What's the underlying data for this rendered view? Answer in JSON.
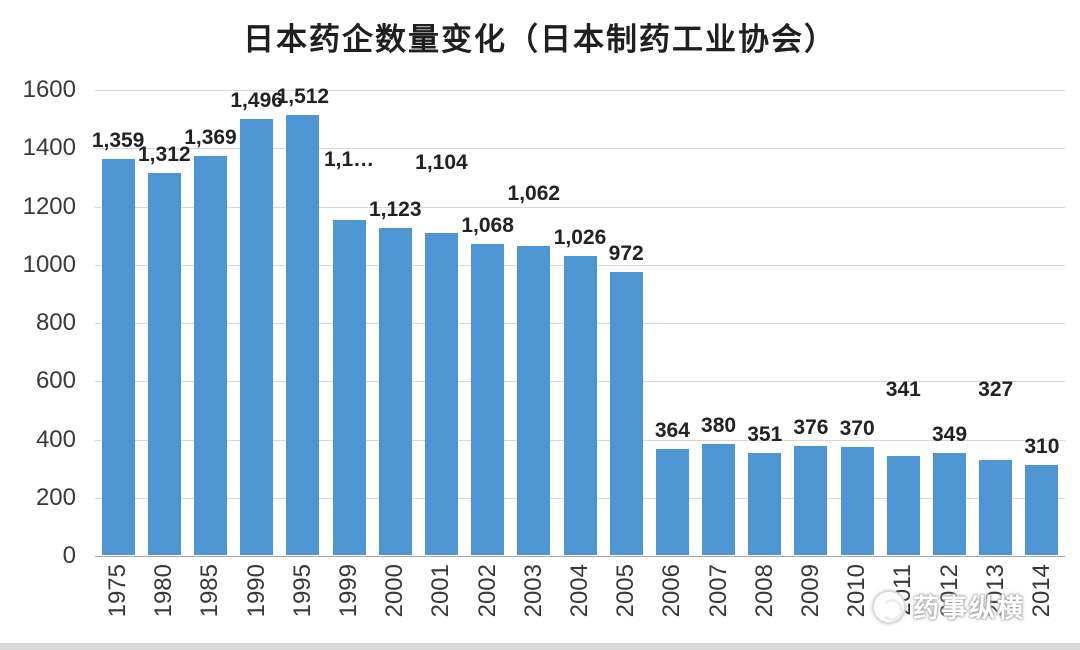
{
  "title": "日本药企数量变化（日本制药工业协会）",
  "watermark": {
    "text": "药事纵横",
    "icon": "circle-logo"
  },
  "chart_data": {
    "type": "bar",
    "title": "日本药企数量变化（日本制药工业协会）",
    "categories": [
      "1975",
      "1980",
      "1985",
      "1990",
      "1995",
      "1999",
      "2000",
      "2001",
      "2002",
      "2003",
      "2004",
      "2005",
      "2006",
      "2007",
      "2008",
      "2009",
      "2010",
      "2011",
      "2012",
      "2013",
      "2014"
    ],
    "values": [
      1359,
      1312,
      1369,
      1496,
      1512,
      1150,
      1123,
      1104,
      1068,
      1062,
      1026,
      972,
      364,
      380,
      351,
      376,
      370,
      341,
      349,
      327,
      310
    ],
    "data_labels": [
      "1,359",
      "1,312",
      "1,369",
      "1,496",
      "1,512",
      "1,1…",
      "1,123",
      "1,104",
      "1,068",
      "1,062",
      "1,026",
      "972",
      "364",
      "380",
      "351",
      "376",
      "370",
      "341",
      "349",
      "327",
      "310"
    ],
    "xlabel": "",
    "ylabel": "",
    "ylim": [
      0,
      1600
    ],
    "yticks": [
      0,
      200,
      400,
      600,
      800,
      1000,
      1200,
      1400,
      1600
    ],
    "grid": "horizontal",
    "legend": "none",
    "bar_color": "#4E96D3"
  }
}
